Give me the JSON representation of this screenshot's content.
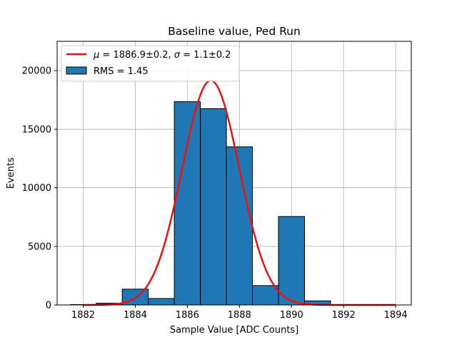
{
  "chart_data": {
    "type": "bar",
    "title": "Baseline value, Ped Run",
    "xlabel": "Sample Value [ADC Counts]",
    "ylabel": "Events",
    "xlim": [
      1881.0,
      1894.6
    ],
    "ylim": [
      0,
      22500
    ],
    "grid": true,
    "legend_position": "top-left",
    "bar_color": "#1f77b4",
    "bar_edge_color": "#000000",
    "fit_color": "#ee1111",
    "x_ticks": [
      1882,
      1884,
      1886,
      1888,
      1890,
      1892,
      1894
    ],
    "x_tick_labels": [
      "1882",
      "1884",
      "1886",
      "1888",
      "1890",
      "1892",
      "1894"
    ],
    "y_ticks": [
      0,
      5000,
      10000,
      15000,
      20000
    ],
    "y_tick_labels": [
      "0",
      "5000",
      "10000",
      "15000",
      "20000"
    ],
    "histogram": {
      "bin_edges": [
        1881.5,
        1882.5,
        1883.5,
        1884.5,
        1885.5,
        1886.5,
        1887.5,
        1888.5,
        1889.5,
        1890.5,
        1891.5,
        1892.5,
        1893.5
      ],
      "counts": [
        30,
        150,
        1350,
        550,
        17350,
        16750,
        13500,
        1650,
        7550,
        350,
        0,
        0
      ]
    },
    "fit": {
      "type": "gaussian",
      "mu": 1886.9,
      "sigma": 1.1,
      "amplitude": 19150,
      "x_range": [
        1882,
        1894
      ]
    },
    "legend": [
      {
        "kind": "line",
        "label_parts": [
          "μ",
          " = 1886.9±0.2, ",
          "σ",
          " = 1.1±0.2"
        ]
      },
      {
        "kind": "patch",
        "label": "RMS = 1.45"
      }
    ]
  }
}
